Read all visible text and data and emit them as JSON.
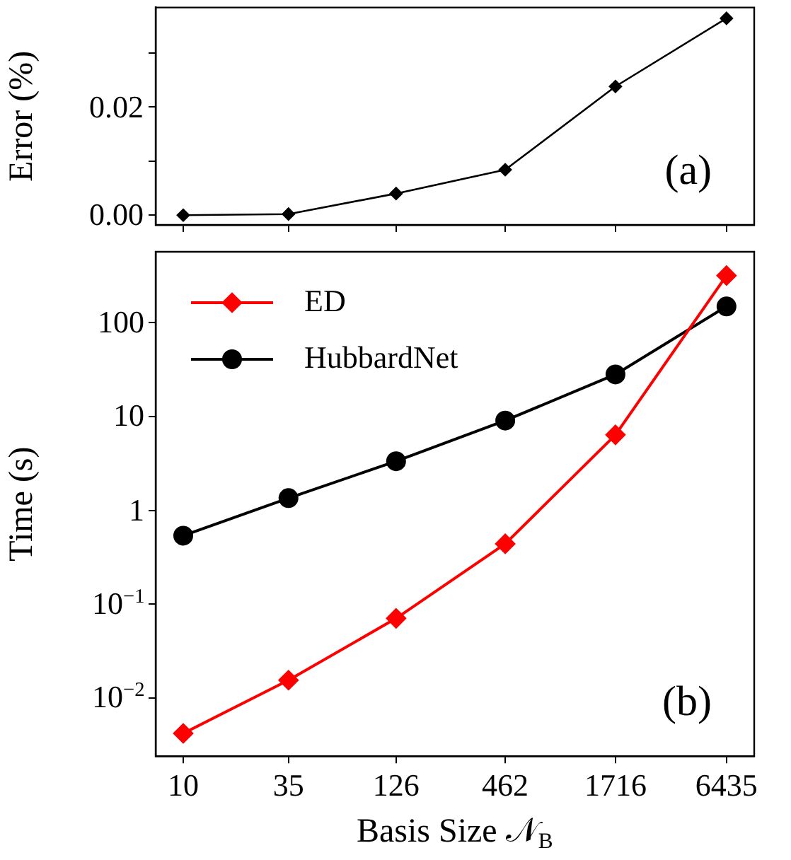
{
  "chart_data": [
    {
      "type": "line",
      "ylabel": "Error (%)",
      "x": [
        10,
        35,
        126,
        462,
        1716,
        6435
      ],
      "log": "x",
      "xlim": [
        7.2,
        8950
      ],
      "xticks": [
        10,
        35,
        126,
        462,
        1716,
        6435
      ],
      "ylim": [
        -0.0018,
        0.0384
      ],
      "yticks": [
        {
          "value": 0,
          "label": "0.00"
        },
        {
          "value": 0.01,
          "label": null
        },
        {
          "value": 0.02,
          "label": "0.02"
        },
        {
          "value": 0.03,
          "label": null
        }
      ],
      "tick_labels": "y",
      "grid": false,
      "legend": false,
      "series": [
        {
          "color": "#000000",
          "marker": "diamond",
          "values": [
            0.0,
            0.0002,
            0.004,
            0.0084,
            0.0238,
            0.0364
          ]
        }
      ],
      "annotations": [
        "(a)"
      ]
    },
    {
      "type": "line",
      "xlabel": "Basis Size 𝒩$_{B}$",
      "ylabel": "Time (s)",
      "x": [
        10,
        35,
        126,
        462,
        1716,
        6435
      ],
      "log": "xy",
      "xlim": [
        7.2,
        8950
      ],
      "xticks": [
        10,
        35,
        126,
        462,
        1716,
        6435
      ],
      "ylim": [
        0.0024,
        570
      ],
      "yticks": [
        {
          "value": 0.01,
          "label": "10$^{−2}$"
        },
        {
          "value": 0.1,
          "label": "10$^{−1}$"
        },
        1,
        10,
        100
      ],
      "grid": false,
      "legend": "top left",
      "series": [
        {
          "name": "ED",
          "color": "#ff0000",
          "marker": "diamond",
          "values": [
            0.0042,
            0.0155,
            0.0706,
            0.44,
            6.38,
            318
          ]
        },
        {
          "name": "HubbardNet",
          "color": "#000000",
          "marker": "circle",
          "values": [
            0.537,
            1.35,
            3.34,
            9.06,
            28.1,
            149
          ]
        }
      ],
      "annotations": [
        "(b)"
      ]
    }
  ]
}
